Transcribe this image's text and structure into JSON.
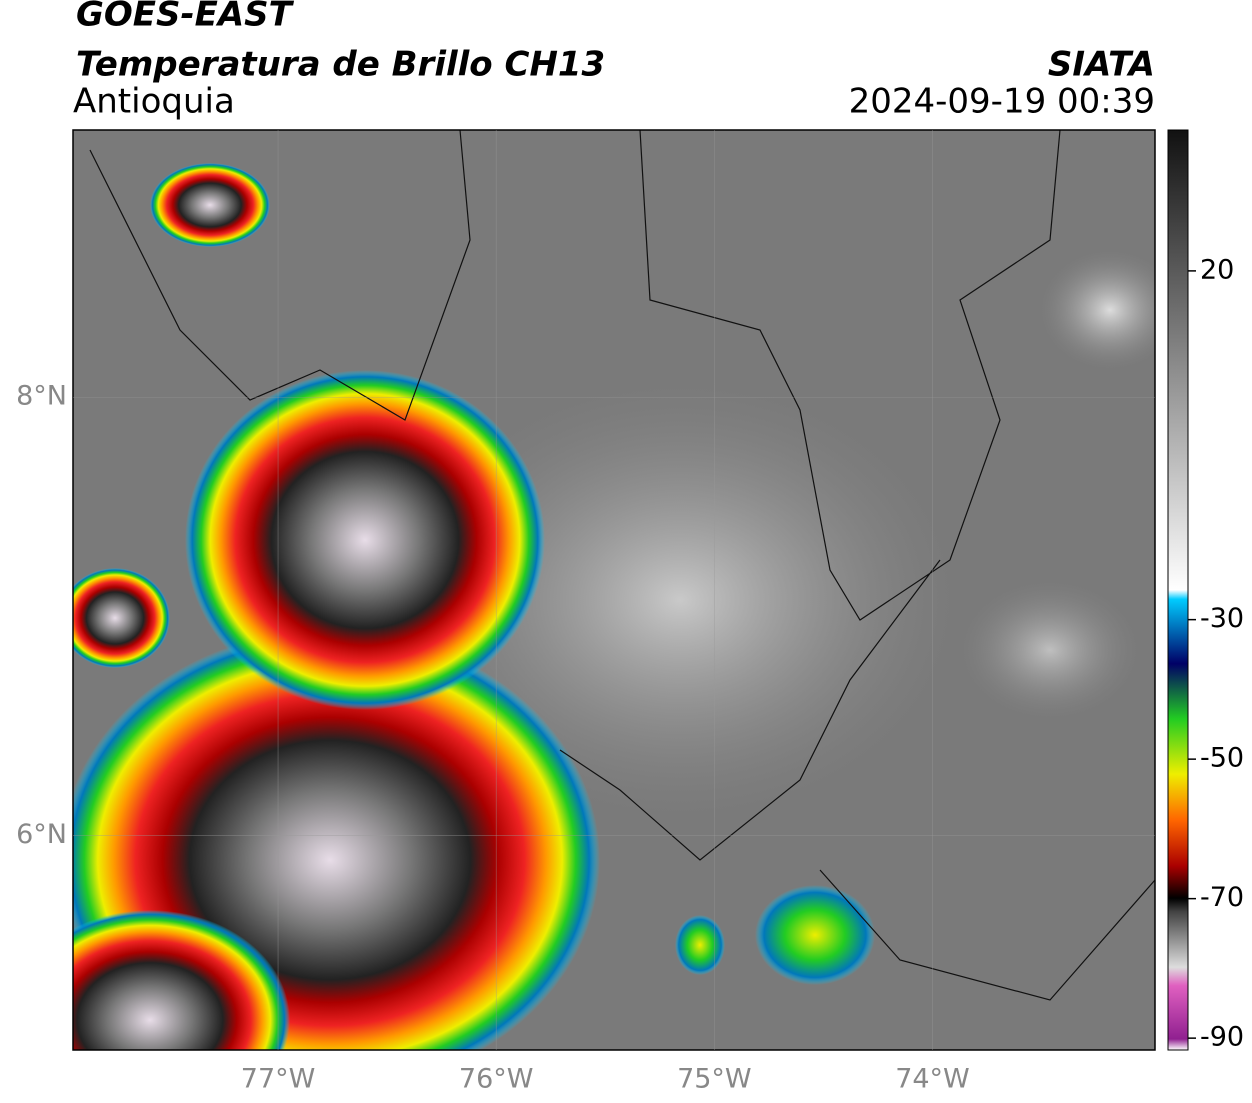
{
  "header": {
    "title": "GOES-EAST",
    "subtitle": "Temperatura de Brillo CH13",
    "region": "Antioquia",
    "source": "SIATA",
    "timestamp": "2024-09-19 00:39"
  },
  "map": {
    "xlim": [
      -77.94,
      -72.98
    ],
    "ylim": [
      5.02,
      9.22
    ],
    "lat_ticks": [
      {
        "value": 8,
        "label": "8°N"
      },
      {
        "value": 6,
        "label": "6°N"
      }
    ],
    "lon_ticks": [
      {
        "value": -77,
        "label": "77°W"
      },
      {
        "value": -76,
        "label": "76°W"
      },
      {
        "value": -75,
        "label": "75°W"
      },
      {
        "value": -74,
        "label": "74°W"
      }
    ]
  },
  "colorbar": {
    "lim": [
      -91.7,
      40.2
    ],
    "ticks": [
      20,
      -30,
      -50,
      -70,
      -90
    ]
  }
}
